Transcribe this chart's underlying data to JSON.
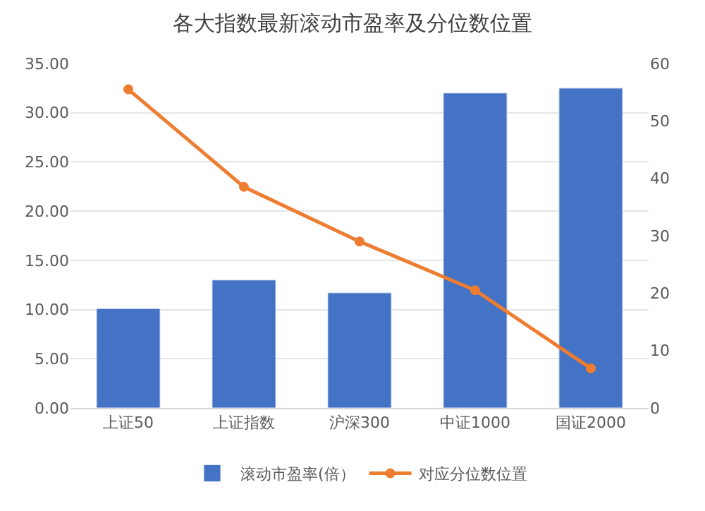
{
  "chart_data": {
    "type": "bar",
    "title": "各大指数最新滚动市盈率及分位数位置",
    "categories": [
      "上证50",
      "上证指数",
      "沪深300",
      "中证1000",
      "国证2000"
    ],
    "series": [
      {
        "name": "滚动市盈率(倍）",
        "color": "#4472c4",
        "values": [
          10.1,
          13.0,
          11.7,
          32.0,
          32.5
        ]
      },
      {
        "name": "对应分位数位置",
        "type": "line",
        "axis": "y2",
        "color": "#ed7d31",
        "marker": "circle",
        "values": [
          55.5,
          38.5,
          29.0,
          20.5,
          6.9
        ]
      }
    ],
    "ylim": [
      0,
      35
    ],
    "yticks": [
      {
        "value": 0,
        "label": "0.00"
      },
      {
        "value": 5,
        "label": "5.00"
      },
      {
        "value": 10,
        "label": "10.00"
      },
      {
        "value": 15,
        "label": "15.00"
      },
      {
        "value": 20,
        "label": "20.00"
      },
      {
        "value": 25,
        "label": "25.00"
      },
      {
        "value": 30,
        "label": "30.00"
      },
      {
        "value": 35,
        "label": "35.00"
      }
    ],
    "y2lim": [
      0,
      60
    ],
    "y2ticks": [
      0,
      10,
      20,
      30,
      40,
      50,
      60
    ],
    "grid": "y",
    "legend": "bottom"
  }
}
